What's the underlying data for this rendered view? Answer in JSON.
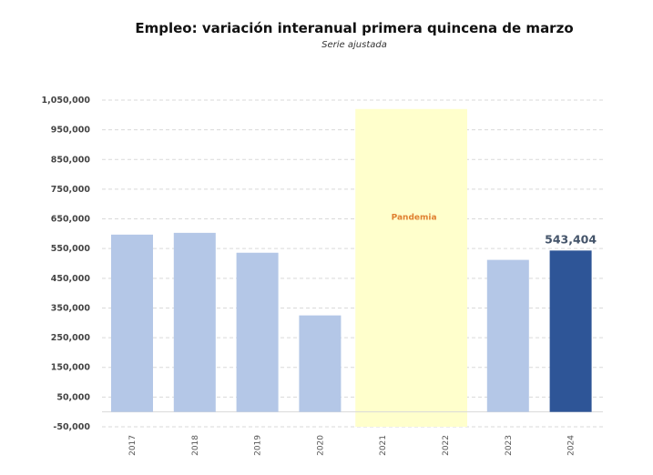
{
  "chart_data": {
    "type": "bar",
    "title": "Empleo: variación interanual primera quincena de marzo",
    "subtitle": "Serie ajustada",
    "categories": [
      "2017",
      "2018",
      "2019",
      "2020",
      "2021",
      "2022",
      "2023",
      "2024"
    ],
    "values": [
      597000,
      603000,
      536000,
      325000,
      null,
      null,
      512000,
      543404
    ],
    "highlight": {
      "category": "2024",
      "color": "#2E5597",
      "label": "543,404"
    },
    "bar_color": "#B4C7E7",
    "ylim": [
      -50000,
      1050000
    ],
    "yticks": [
      1050000,
      950000,
      850000,
      750000,
      650000,
      550000,
      450000,
      350000,
      250000,
      150000,
      50000,
      -50000
    ],
    "ytick_labels": [
      "1,050,000",
      "950,000",
      "850,000",
      "750,000",
      "650,000",
      "550,000",
      "450,000",
      "350,000",
      "250,000",
      "150,000",
      "50,000",
      "-50,000"
    ],
    "grid": true,
    "annotation": {
      "label": "Pandemia",
      "from": "2021",
      "to": "2022",
      "color": "#FFFFCC",
      "text_color": "#E08030"
    },
    "xlabel": "",
    "ylabel": ""
  }
}
